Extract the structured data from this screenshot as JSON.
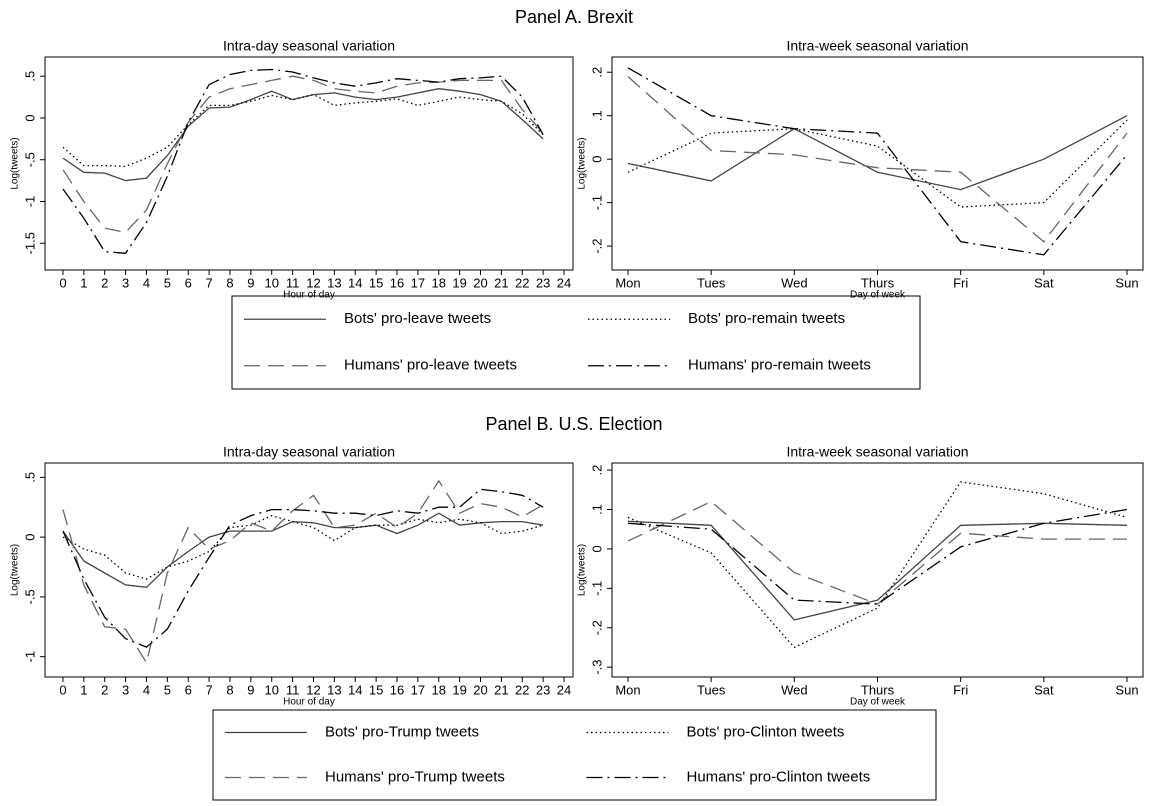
{
  "panels": [
    {
      "title": "Panel A. Brexit"
    },
    {
      "title": "Panel B. U.S. Election"
    }
  ],
  "chart_data": [
    {
      "type": "line",
      "title": "Intra-day seasonal variation",
      "xlabel": "Hour of day",
      "ylabel": "Log(tweets)",
      "x": [
        0,
        1,
        2,
        3,
        4,
        5,
        6,
        7,
        8,
        9,
        10,
        11,
        12,
        13,
        14,
        15,
        16,
        17,
        18,
        19,
        20,
        21,
        22,
        23
      ],
      "xlim": [
        -0.86,
        24.43
      ],
      "xticks": [
        0,
        1,
        2,
        3,
        4,
        5,
        6,
        7,
        8,
        9,
        10,
        11,
        12,
        13,
        14,
        15,
        16,
        17,
        18,
        19,
        20,
        21,
        22,
        23,
        24
      ],
      "ylim": [
        -1.82,
        0.73
      ],
      "yticks": [
        {
          "value": -1.5,
          "label": "-1.5"
        },
        -1,
        {
          "value": -0.5,
          "label": "-.5"
        },
        0,
        {
          "value": 0.5,
          "label": ".5"
        }
      ],
      "series": [
        {
          "name": "Bots' pro-leave tweets",
          "color": "#444444",
          "dash": "solid",
          "values": [
            -0.48,
            -0.65,
            -0.66,
            -0.75,
            -0.72,
            -0.45,
            -0.1,
            0.12,
            0.13,
            0.22,
            0.32,
            0.22,
            0.28,
            0.3,
            0.25,
            0.22,
            0.25,
            0.3,
            0.35,
            0.32,
            0.28,
            0.2,
            -0.02,
            -0.25
          ]
        },
        {
          "name": "Bots' pro-remain tweets",
          "color": "#000000",
          "dash": "dot",
          "values": [
            -0.35,
            -0.57,
            -0.57,
            -0.58,
            -0.48,
            -0.35,
            -0.08,
            0.15,
            0.15,
            0.2,
            0.27,
            0.22,
            0.28,
            0.15,
            0.18,
            0.2,
            0.23,
            0.15,
            0.2,
            0.25,
            0.22,
            0.2,
            0.05,
            -0.2
          ]
        },
        {
          "name": "Humans' pro-leave tweets",
          "color": "#666666",
          "dash": "longdash",
          "values": [
            -0.62,
            -1.0,
            -1.32,
            -1.37,
            -1.1,
            -0.55,
            -0.05,
            0.25,
            0.35,
            0.4,
            0.45,
            0.5,
            0.45,
            0.35,
            0.32,
            0.3,
            0.38,
            0.42,
            0.43,
            0.45,
            0.45,
            0.45,
            0.1,
            -0.18
          ]
        },
        {
          "name": "Humans' pro-remain tweets",
          "color": "#000000",
          "dash": "dashdot",
          "values": [
            -0.85,
            -1.2,
            -1.6,
            -1.62,
            -1.25,
            -0.7,
            -0.05,
            0.4,
            0.52,
            0.57,
            0.58,
            0.55,
            0.48,
            0.42,
            0.38,
            0.42,
            0.47,
            0.45,
            0.43,
            0.47,
            0.48,
            0.5,
            0.25,
            -0.2
          ]
        }
      ]
    },
    {
      "type": "line",
      "title": "Intra-week seasonal variation",
      "xlabel": "Day of week",
      "ylabel": "Log(tweets)",
      "categories": [
        "Mon",
        "Tues",
        "Wed",
        "Thurs",
        "Fri",
        "Sat",
        "Sun"
      ],
      "ylim": [
        -0.255,
        0.235
      ],
      "yticks": [
        {
          "value": -0.2,
          "label": "-.2"
        },
        {
          "value": -0.1,
          "label": "-.1"
        },
        0,
        {
          "value": 0.1,
          "label": ".1"
        },
        {
          "value": 0.2,
          "label": ".2"
        }
      ],
      "series": [
        {
          "color": "#444444",
          "dash": "solid",
          "values": [
            -0.01,
            -0.05,
            0.07,
            -0.03,
            -0.07,
            0.0,
            0.1
          ]
        },
        {
          "color": "#000000",
          "dash": "dot",
          "values": [
            -0.03,
            0.06,
            0.07,
            0.03,
            -0.11,
            -0.1,
            0.09
          ]
        },
        {
          "color": "#666666",
          "dash": "longdash",
          "values": [
            0.19,
            0.02,
            0.01,
            -0.02,
            -0.03,
            -0.19,
            0.06
          ]
        },
        {
          "color": "#000000",
          "dash": "dashdot",
          "values": [
            0.21,
            0.1,
            0.07,
            0.06,
            -0.19,
            -0.22,
            0.01
          ]
        }
      ]
    },
    {
      "type": "line",
      "title": "Intra-day seasonal variation",
      "xlabel": "Hour of day",
      "ylabel": "Log(tweets)",
      "x": [
        0,
        1,
        2,
        3,
        4,
        5,
        6,
        7,
        8,
        9,
        10,
        11,
        12,
        13,
        14,
        15,
        16,
        17,
        18,
        19,
        20,
        21,
        22,
        23
      ],
      "xlim": [
        -0.86,
        24.43
      ],
      "xticks": [
        0,
        1,
        2,
        3,
        4,
        5,
        6,
        7,
        8,
        9,
        10,
        11,
        12,
        13,
        14,
        15,
        16,
        17,
        18,
        19,
        20,
        21,
        22,
        23,
        24
      ],
      "ylim": [
        -1.17,
        0.62
      ],
      "yticks": [
        -1,
        {
          "value": -0.5,
          "label": "-.5"
        },
        0,
        {
          "value": 0.5,
          "label": ".5"
        }
      ],
      "series": [
        {
          "name": "Bots' pro-Trump tweets",
          "color": "#444444",
          "dash": "solid",
          "values": [
            0.05,
            -0.2,
            -0.3,
            -0.4,
            -0.42,
            -0.25,
            -0.12,
            0.0,
            0.05,
            0.05,
            0.05,
            0.13,
            0.12,
            0.08,
            0.08,
            0.1,
            0.03,
            0.1,
            0.2,
            0.1,
            0.12,
            0.13,
            0.13,
            0.1
          ]
        },
        {
          "name": "Bots' pro-Clinton tweets",
          "color": "#000000",
          "dash": "dot",
          "values": [
            0.0,
            -0.1,
            -0.15,
            -0.3,
            -0.35,
            -0.25,
            -0.2,
            -0.12,
            0.08,
            0.1,
            0.18,
            0.13,
            0.08,
            -0.03,
            0.08,
            0.1,
            0.1,
            0.15,
            0.12,
            0.15,
            0.12,
            0.03,
            0.05,
            0.1
          ]
        },
        {
          "name": "Humans' pro-Trump tweets",
          "color": "#666666",
          "dash": "longdash",
          "values": [
            0.23,
            -0.4,
            -0.75,
            -0.77,
            -1.05,
            -0.3,
            0.08,
            -0.1,
            -0.03,
            0.12,
            0.05,
            0.22,
            0.35,
            0.08,
            0.1,
            0.2,
            0.08,
            0.2,
            0.47,
            0.2,
            0.28,
            0.25,
            0.17,
            0.27
          ]
        },
        {
          "name": "Humans' pro-Clinton tweets",
          "color": "#000000",
          "dash": "dashdot",
          "values": [
            0.05,
            -0.35,
            -0.67,
            -0.85,
            -0.92,
            -0.77,
            -0.45,
            -0.17,
            0.1,
            0.18,
            0.23,
            0.23,
            0.22,
            0.2,
            0.2,
            0.18,
            0.22,
            0.2,
            0.25,
            0.25,
            0.4,
            0.38,
            0.35,
            0.25
          ]
        }
      ]
    },
    {
      "type": "line",
      "title": "Intra-week seasonal variation",
      "xlabel": "Day of week",
      "ylabel": "Log(tweets)",
      "categories": [
        "Mon",
        "Tues",
        "Wed",
        "Thurs",
        "Fri",
        "Sat",
        "Sun"
      ],
      "ylim": [
        -0.325,
        0.218
      ],
      "yticks": [
        {
          "value": -0.3,
          "label": "-.3"
        },
        {
          "value": -0.2,
          "label": "-.2"
        },
        {
          "value": -0.1,
          "label": "-.1"
        },
        0,
        {
          "value": 0.1,
          "label": ".1"
        },
        {
          "value": 0.2,
          "label": ".2"
        }
      ],
      "series": [
        {
          "color": "#444444",
          "dash": "solid",
          "values": [
            0.07,
            0.06,
            -0.18,
            -0.13,
            0.06,
            0.065,
            0.06
          ]
        },
        {
          "color": "#000000",
          "dash": "dot",
          "values": [
            0.08,
            -0.01,
            -0.25,
            -0.15,
            0.17,
            0.14,
            0.08
          ]
        },
        {
          "color": "#666666",
          "dash": "longdash",
          "values": [
            0.02,
            0.12,
            -0.06,
            -0.14,
            0.04,
            0.025,
            0.025
          ]
        },
        {
          "color": "#000000",
          "dash": "dashdot",
          "values": [
            0.065,
            0.05,
            -0.13,
            -0.14,
            0.005,
            0.065,
            0.1
          ]
        }
      ]
    }
  ]
}
